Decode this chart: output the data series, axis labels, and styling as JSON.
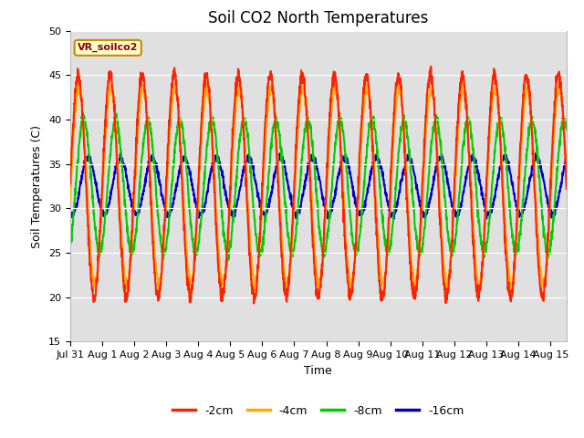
{
  "title": "Soil CO2 North Temperatures",
  "ylabel": "Soil Temperatures (C)",
  "xlabel": "Time",
  "annotation": "VR_soilco2",
  "ylim": [
    15,
    50
  ],
  "colors": {
    "-2cm": "#ff2200",
    "-4cm": "#ffaa00",
    "-8cm": "#00cc00",
    "-16cm": "#0000cc"
  },
  "legend_labels": [
    "-2cm",
    "-4cm",
    "-8cm",
    "-16cm"
  ],
  "x_tick_labels": [
    "Jul 31",
    "Aug 1",
    "Aug 2",
    "Aug 3",
    "Aug 4",
    "Aug 5",
    "Aug 6",
    "Aug 7",
    "Aug 8",
    "Aug 9",
    "Aug 10",
    "Aug 11",
    "Aug 12",
    "Aug 13",
    "Aug 14",
    "Aug 15"
  ],
  "bg_color": "#e0e0e0",
  "period_hours": 24,
  "duration_days": 15.5,
  "mean_temp": 32.5,
  "amp_2cm": 12.5,
  "amp_4cm": 11.0,
  "amp_8cm": 7.5,
  "amp_16cm": 3.2,
  "phase_2cm": 0.0,
  "phase_4cm": 0.15,
  "phase_8cm": 1.1,
  "phase_16cm": 2.0,
  "title_fontsize": 12,
  "label_fontsize": 9,
  "tick_fontsize": 8,
  "legend_fontsize": 9,
  "linewidth": 1.5
}
